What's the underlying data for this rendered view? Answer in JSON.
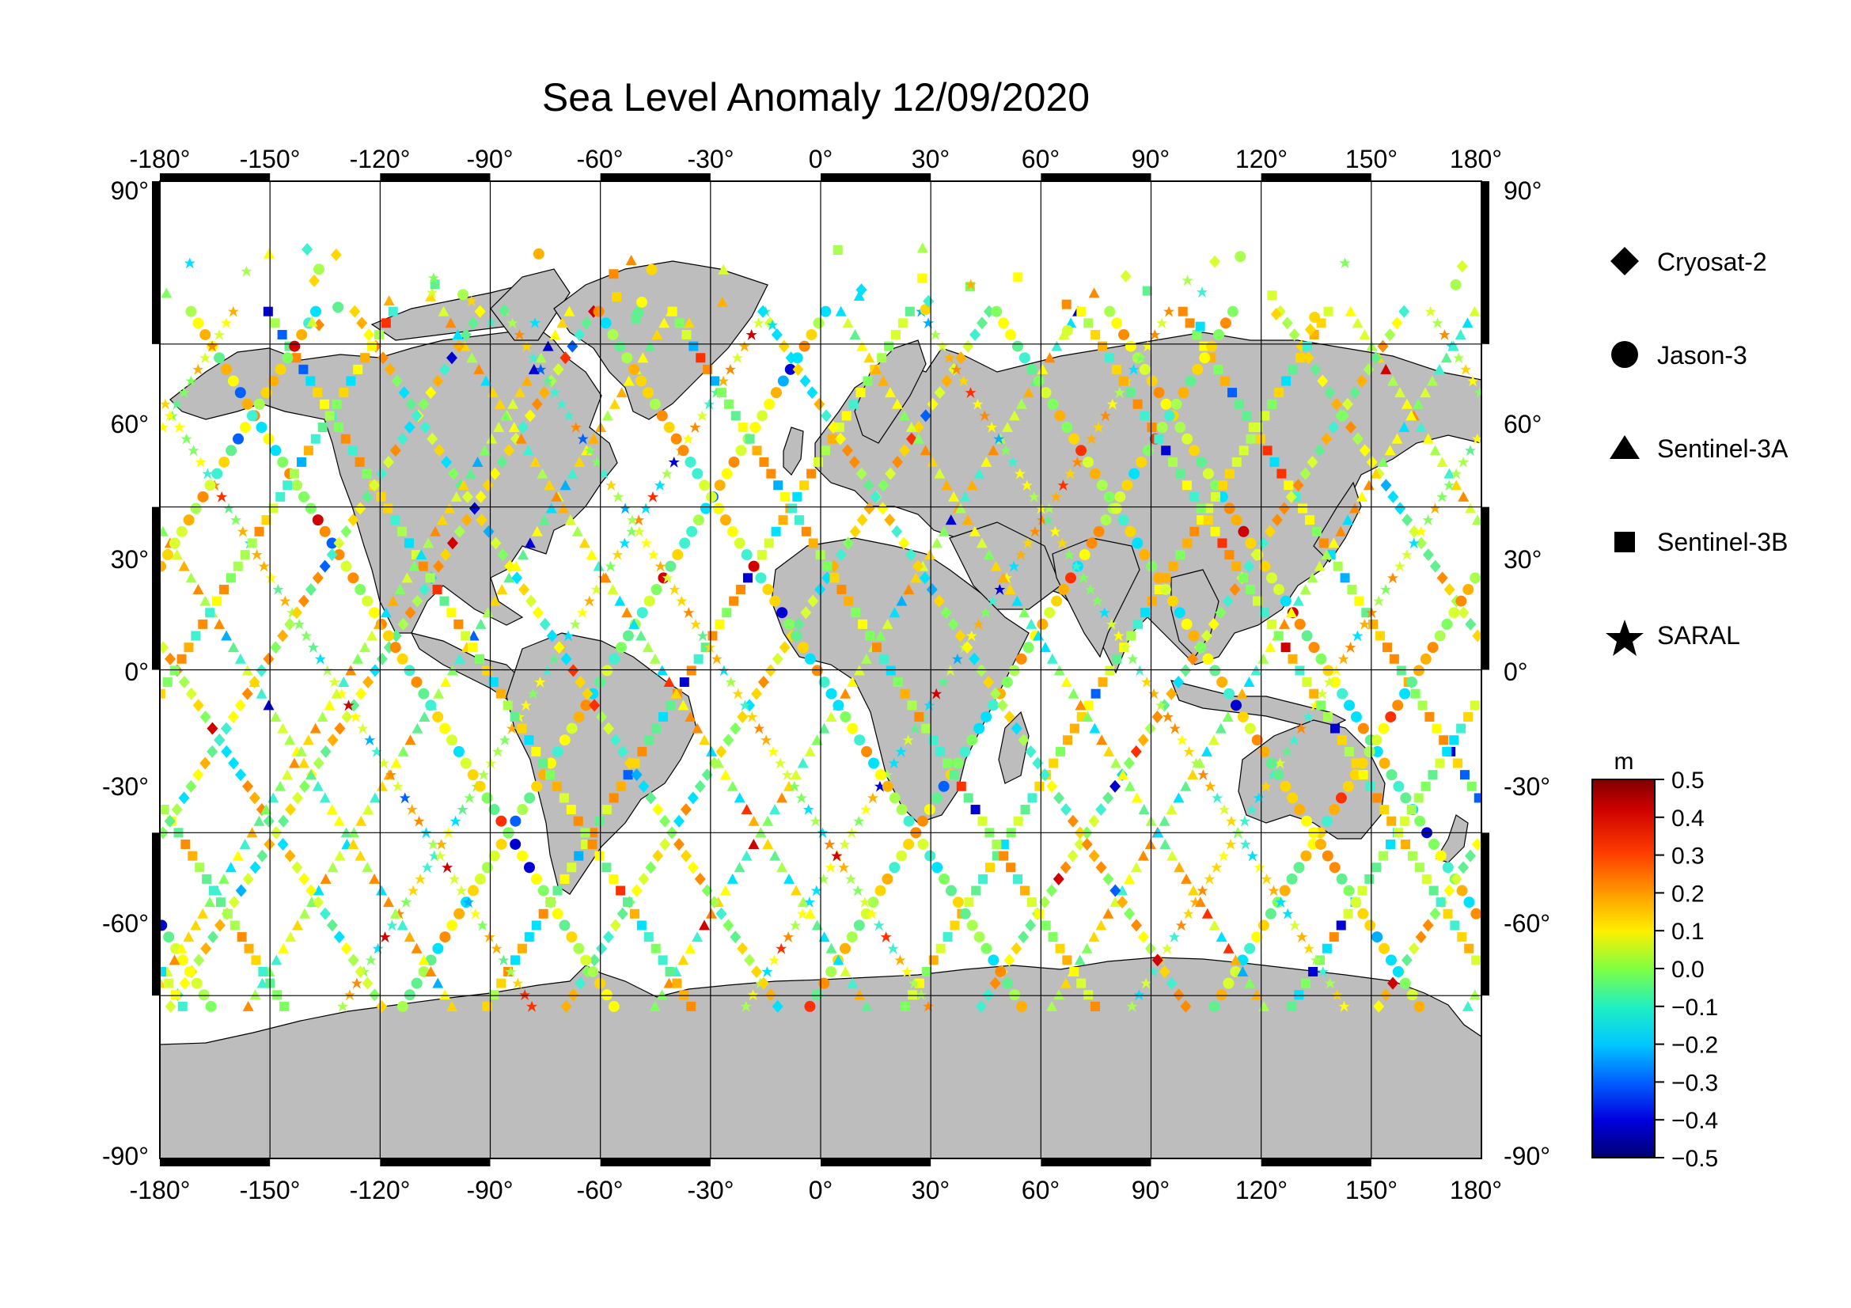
{
  "title": "Sea Level Anomaly 12/09/2020",
  "map": {
    "lon_ticks": [
      "-180°",
      "-150°",
      "-120°",
      "-90°",
      "-60°",
      "-30°",
      "0°",
      "30°",
      "60°",
      "90°",
      "120°",
      "150°",
      "180°"
    ],
    "lat_ticks_left": [
      "90°",
      "60°",
      "30°",
      "0°",
      "-30°",
      "-60°",
      "-90°"
    ],
    "lat_ticks_right": [
      "90°",
      "60°",
      "30°",
      "0°",
      "-30°",
      "-60°",
      "-90°"
    ],
    "lon_range": [
      -180,
      180
    ],
    "lat_range": [
      -90,
      90
    ],
    "grid_every_deg": 30,
    "land_color": "#bdbdbd",
    "ocean_color": "#ffffff"
  },
  "legend": {
    "items": [
      {
        "label": "Cryosat-2",
        "icon": "diamond-icon"
      },
      {
        "label": "Jason-3",
        "icon": "circle-icon"
      },
      {
        "label": "Sentinel-3A",
        "icon": "triangle-icon"
      },
      {
        "label": "Sentinel-3B",
        "icon": "square-icon"
      },
      {
        "label": "SARAL",
        "icon": "star-icon"
      }
    ]
  },
  "colorbar": {
    "unit": "m",
    "ticks": [
      "0.5",
      "0.4",
      "0.3",
      "0.2",
      "0.1",
      "0.0",
      "−0.1",
      "−0.2",
      "−0.3",
      "−0.4",
      "−0.5"
    ],
    "range": [
      -0.5,
      0.5
    ],
    "colors": [
      "#7f0000",
      "#e31a1c",
      "#ff7f00",
      "#ffd700",
      "#ffff00",
      "#7cfc00",
      "#40e0a0",
      "#00ffff",
      "#1e90ff",
      "#0000ff",
      "#00008b"
    ]
  }
}
